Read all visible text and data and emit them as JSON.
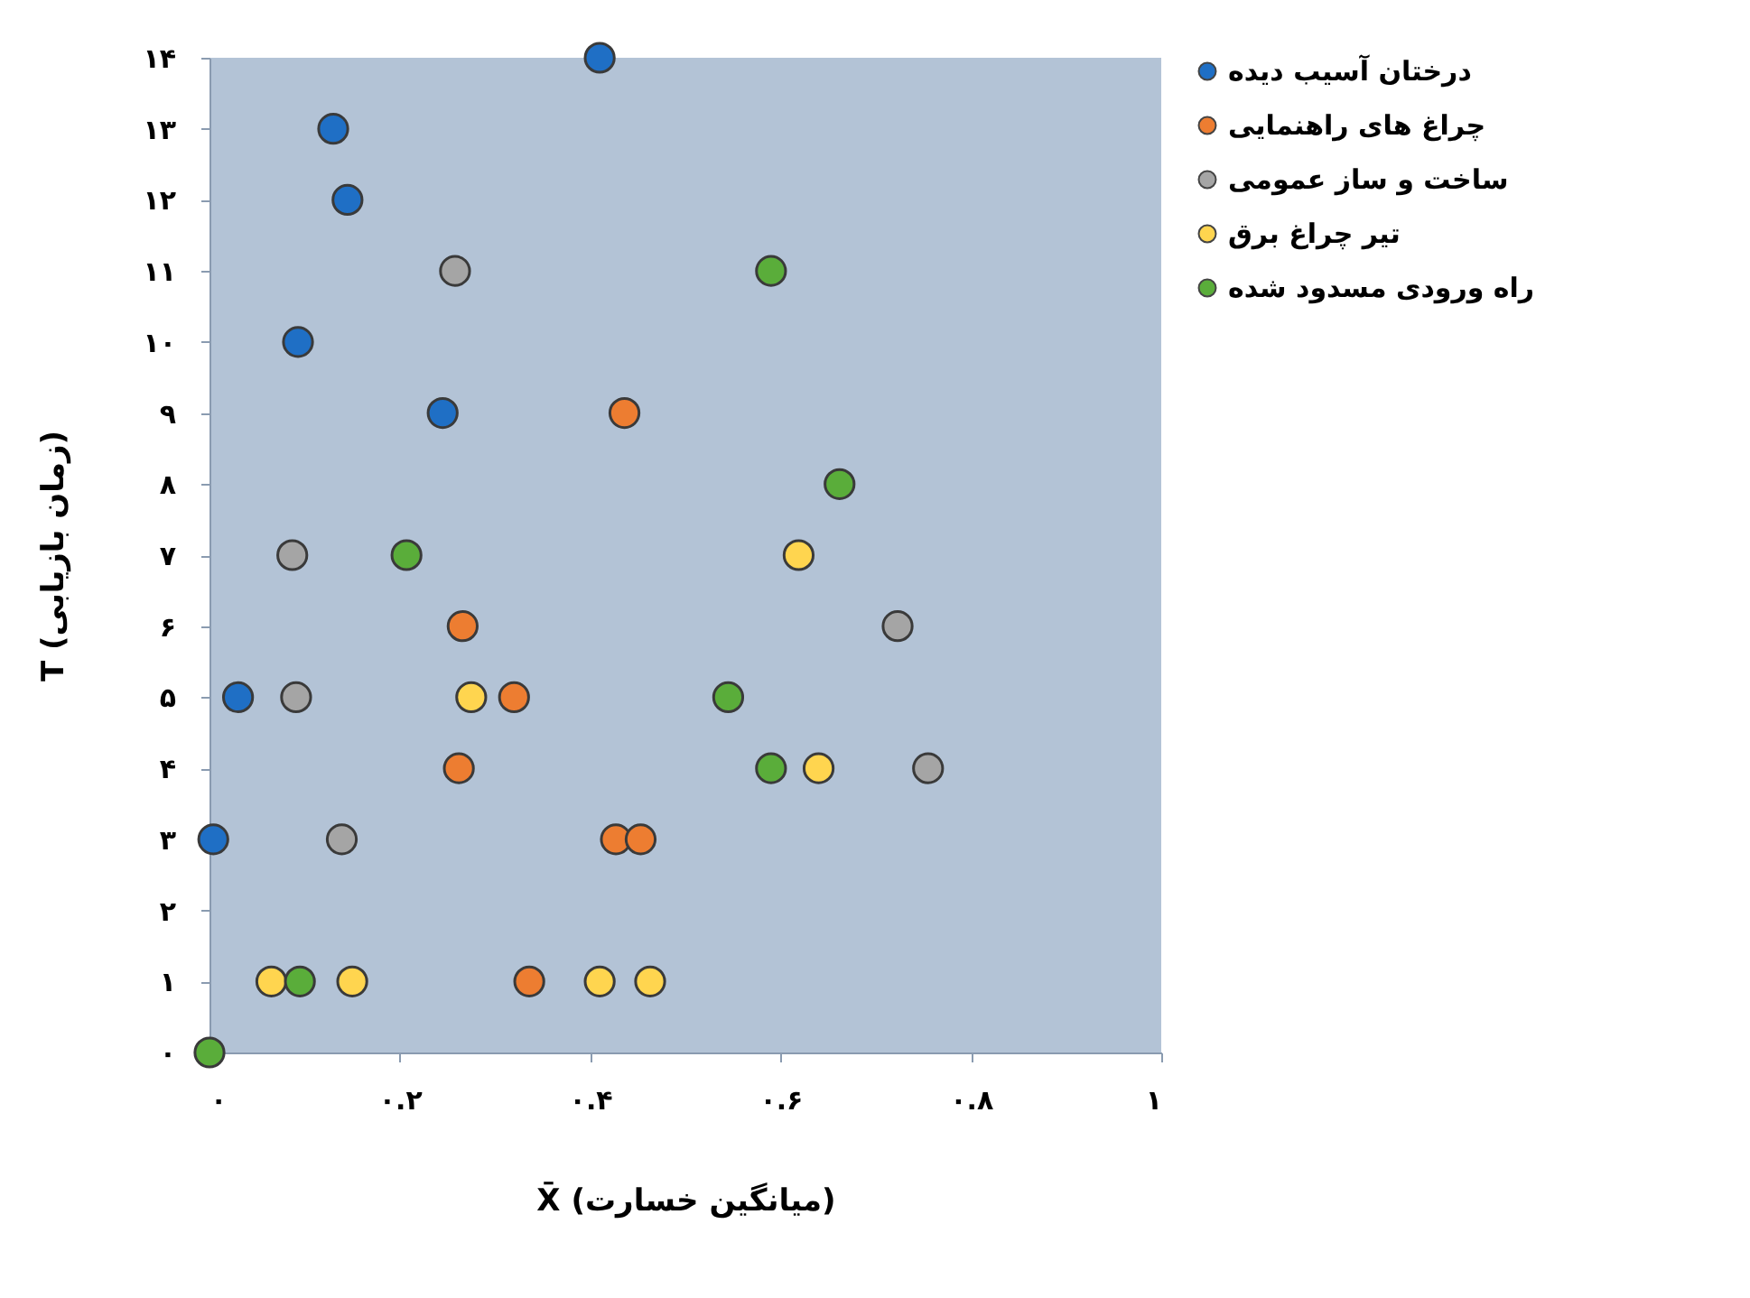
{
  "chart_data": {
    "type": "scatter",
    "xlabel": "X̄ (میانگین خسارت)",
    "ylabel": "T (زمان بازیابی)",
    "xlim": [
      0,
      1
    ],
    "ylim": [
      0,
      14
    ],
    "xticks": [
      {
        "value": 0,
        "label": "۰"
      },
      {
        "value": 0.2,
        "label": "۰.۲"
      },
      {
        "value": 0.4,
        "label": "۰.۴"
      },
      {
        "value": 0.6,
        "label": "۰.۶"
      },
      {
        "value": 0.8,
        "label": "۰.۸"
      },
      {
        "value": 1,
        "label": "۱"
      }
    ],
    "yticks": [
      {
        "value": 0,
        "label": "۰"
      },
      {
        "value": 1,
        "label": "۱"
      },
      {
        "value": 2,
        "label": "۲"
      },
      {
        "value": 3,
        "label": "۳"
      },
      {
        "value": 4,
        "label": "۴"
      },
      {
        "value": 5,
        "label": "۵"
      },
      {
        "value": 6,
        "label": "۶"
      },
      {
        "value": 7,
        "label": "۷"
      },
      {
        "value": 8,
        "label": "۸"
      },
      {
        "value": 9,
        "label": "۹"
      },
      {
        "value": 10,
        "label": "۱۰"
      },
      {
        "value": 11,
        "label": "۱۱"
      },
      {
        "value": 12,
        "label": "۱۲"
      },
      {
        "value": 13,
        "label": "۱۳"
      },
      {
        "value": 14,
        "label": "۱۴"
      }
    ],
    "grid": false,
    "legend": "right",
    "marker": "circle",
    "series": [
      {
        "name": "درختان آسیب دیده",
        "color": "#1f6fc5",
        "x": [
          0.41,
          0.13,
          0.145,
          0.093,
          0.245,
          0.03,
          0.004
        ],
        "values": [
          14,
          13,
          12,
          10,
          9,
          5,
          3
        ]
      },
      {
        "name": "چراغ های راهنمایی",
        "color": "#ed7d31",
        "x": [
          0.436,
          0.266,
          0.32,
          0.262,
          0.427,
          0.453,
          0.336
        ],
        "values": [
          9,
          6,
          5,
          4,
          3,
          3,
          1
        ]
      },
      {
        "name": "ساخت و ساز عمومی",
        "color": "#a5a5a5",
        "x": [
          0.258,
          0.087,
          0.091,
          0.723,
          0.755,
          0.139
        ],
        "values": [
          11,
          7,
          5,
          6,
          4,
          3
        ]
      },
      {
        "name": "تیر چراغ برق",
        "color": "#ffd54f",
        "x": [
          0.619,
          0.275,
          0.64,
          0.065,
          0.15,
          0.41,
          0.463
        ],
        "values": [
          7,
          5,
          4,
          1,
          1,
          1,
          1
        ]
      },
      {
        "name": "راه ورودی مسدود شده",
        "color": "#5aad3a",
        "x": [
          0.59,
          0.662,
          0.207,
          0.545,
          0.59,
          0.095,
          0.0
        ],
        "values": [
          11,
          8,
          7,
          5,
          4,
          1,
          0
        ]
      }
    ]
  }
}
